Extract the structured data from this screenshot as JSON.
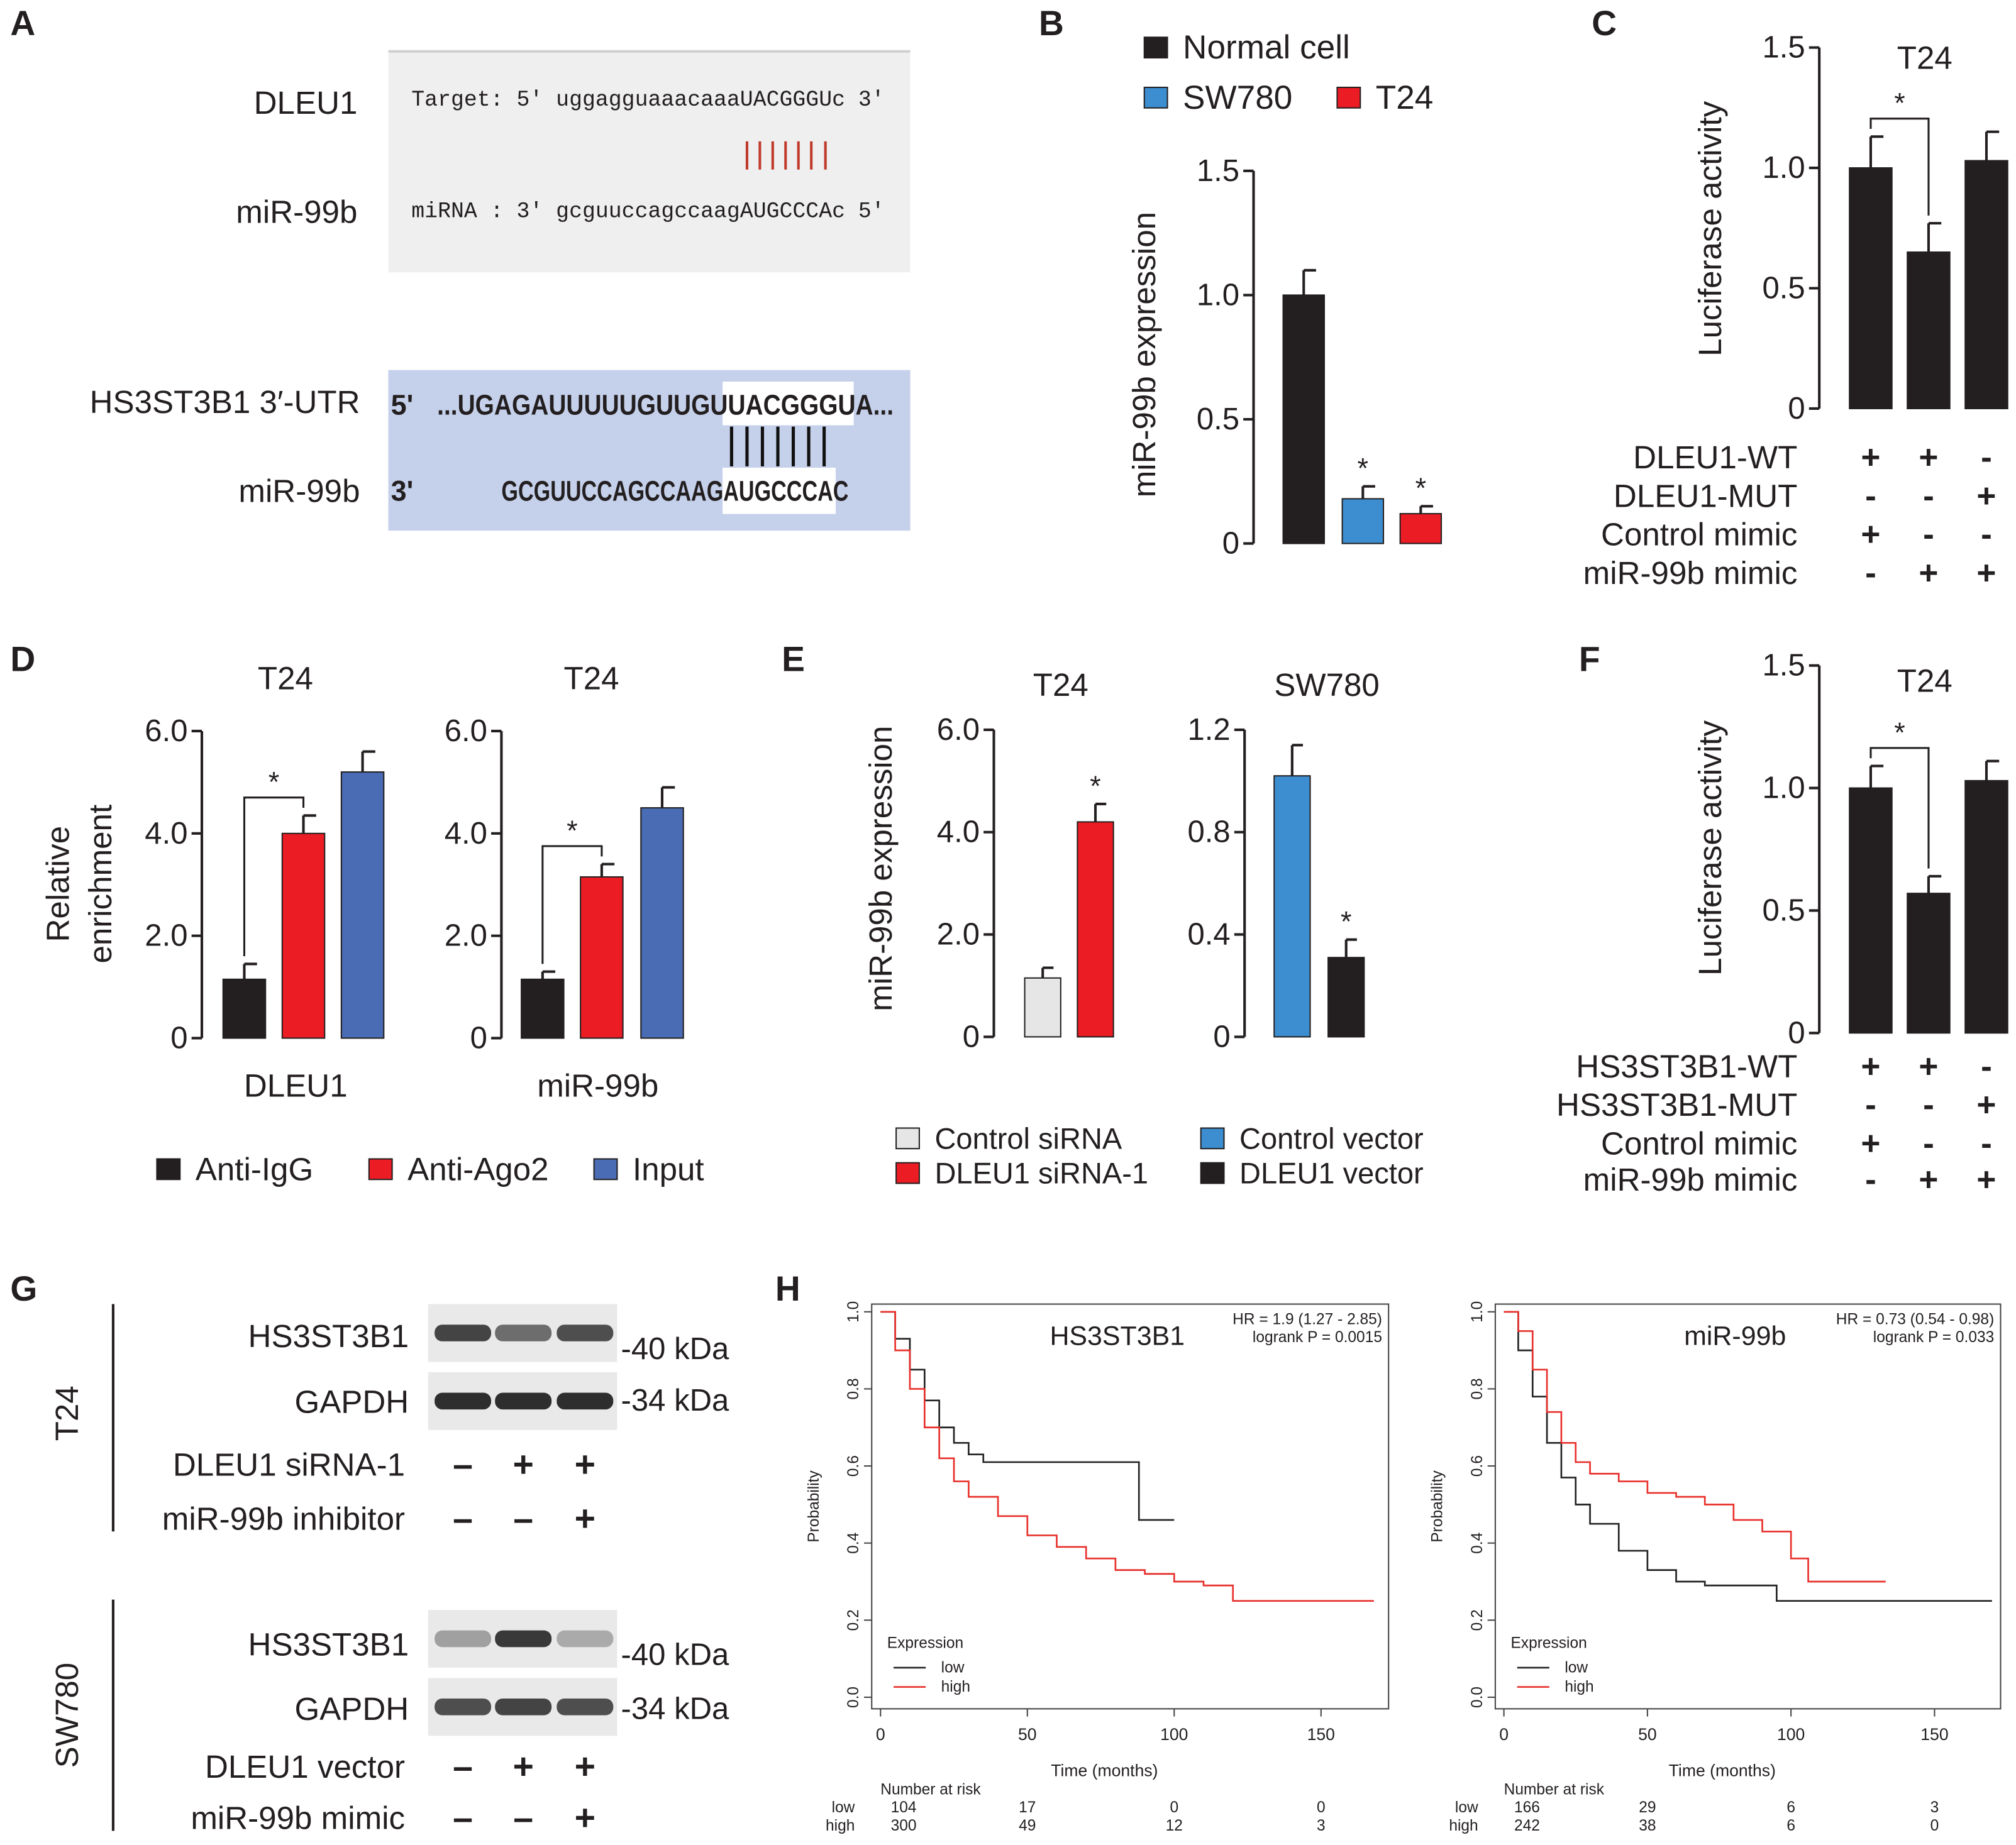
{
  "panel_labels": [
    "A",
    "B",
    "C",
    "D",
    "E",
    "F",
    "G",
    "H"
  ],
  "panel_a": {
    "pairs": [
      {
        "labels": [
          "DLEU1",
          "miR-99b"
        ],
        "lines": [
          "Target: 5' uggagguaaacaaaUACGGGUc 3'",
          "miRNA : 3' gcguuccagccaagAUGCCCAc 5'"
        ]
      },
      {
        "labels": [
          "HS3ST3B1 3′-UTR",
          "miR-99b"
        ],
        "ends": [
          "5'",
          "3'"
        ],
        "lines": [
          "...UGAGAUUUUUGUUGUUACGGGUA...",
          "GCGUUCCAGCCAAGAUGCCCAC"
        ]
      }
    ]
  },
  "chart_data": [
    {
      "type": "bar",
      "ylabel": "miR-99b expression",
      "ylim": [
        0,
        1.5
      ],
      "yticks": [
        0,
        0.5,
        {
          "value": 1,
          "label": "1.0"
        },
        1.5
      ],
      "series": [
        {
          "name": "Normal cell",
          "color": "#231f20",
          "values": [
            1.0
          ],
          "errors": [
            0.1
          ]
        },
        {
          "name": "SW780",
          "color": "#3d8ed0",
          "values": [
            0.18
          ],
          "errors": [
            0.05
          ]
        },
        {
          "name": "T24",
          "color": "#ec1c24",
          "values": [
            0.12
          ],
          "errors": [
            0.03
          ]
        }
      ],
      "annotations": [
        "*",
        "*"
      ]
    },
    {
      "type": "bar",
      "title": "T24",
      "ylabel": "Luciferase activity",
      "ylim": [
        0,
        1.5
      ],
      "yticks": [
        0,
        0.5,
        {
          "value": 1,
          "label": "1.0"
        },
        1.5
      ],
      "values": [
        1.0,
        0.65,
        1.03
      ],
      "errors": [
        0.13,
        0.12,
        0.12
      ],
      "color": "#231f20",
      "annotations": [
        "*"
      ],
      "conditions": [
        {
          "label": "DLEU1-WT",
          "signs": [
            "+",
            "+",
            "-"
          ]
        },
        {
          "label": "DLEU1-MUT",
          "signs": [
            "-",
            "-",
            "+"
          ]
        },
        {
          "label": "Control mimic",
          "signs": [
            "+",
            "-",
            "-"
          ]
        },
        {
          "label": "miR-99b mimic",
          "signs": [
            "-",
            "+",
            "+"
          ]
        }
      ]
    },
    {
      "type": "bar",
      "title": "T24",
      "xlabel": "DLEU1",
      "ylabel": [
        "Relative",
        "enrichment"
      ],
      "ylim": [
        0,
        6
      ],
      "yticks": [
        0,
        {
          "value": 2,
          "label": "2.0"
        },
        {
          "value": 4,
          "label": "4.0"
        },
        {
          "value": 6,
          "label": "6.0"
        }
      ],
      "series": [
        {
          "name": "Anti-IgG",
          "color": "#231f20",
          "values": [
            1.15
          ],
          "errors": [
            0.3
          ]
        },
        {
          "name": "Anti-Ago2",
          "color": "#ec1c24",
          "values": [
            4.0
          ],
          "errors": [
            0.35
          ]
        },
        {
          "name": "Input",
          "color": "#4a6cb4",
          "values": [
            5.2
          ],
          "errors": [
            0.4
          ]
        }
      ],
      "annotations": [
        "*"
      ]
    },
    {
      "type": "bar",
      "title": "T24",
      "xlabel": "miR-99b",
      "ylim": [
        0,
        6
      ],
      "yticks": [
        0,
        {
          "value": 2,
          "label": "2.0"
        },
        {
          "value": 4,
          "label": "4.0"
        },
        {
          "value": 6,
          "label": "6.0"
        }
      ],
      "series": [
        {
          "color": "#231f20",
          "values": [
            1.15
          ],
          "errors": [
            0.15
          ]
        },
        {
          "color": "#ec1c24",
          "values": [
            3.15
          ],
          "errors": [
            0.25
          ]
        },
        {
          "color": "#4a6cb4",
          "values": [
            4.5
          ],
          "errors": [
            0.4
          ]
        }
      ],
      "annotations": [
        "*"
      ]
    },
    {
      "type": "bar",
      "title": "T24",
      "ylabel": "miR-99b expression",
      "ylim": [
        0,
        6
      ],
      "yticks": [
        0,
        {
          "value": 2,
          "label": "2.0"
        },
        {
          "value": 4,
          "label": "4.0"
        },
        {
          "value": 6,
          "label": "6.0"
        }
      ],
      "series": [
        {
          "name": "Control siRNA",
          "color": "#e6e6e6",
          "values": [
            1.15
          ],
          "errors": [
            0.2
          ]
        },
        {
          "name": "DLEU1 siRNA-1",
          "color": "#ec1c24",
          "values": [
            4.2
          ],
          "errors": [
            0.35
          ]
        }
      ],
      "annotations": [
        "*"
      ]
    },
    {
      "type": "bar",
      "title": "SW780",
      "ylim": [
        0,
        1.2
      ],
      "yticks": [
        0,
        0.4,
        0.8,
        1.2
      ],
      "series": [
        {
          "name": "Control vector",
          "color": "#3d8ed0",
          "values": [
            1.02
          ],
          "errors": [
            0.12
          ]
        },
        {
          "name": "DLEU1 vector",
          "color": "#231f20",
          "values": [
            0.31
          ],
          "errors": [
            0.07
          ]
        }
      ],
      "annotations": [
        "*"
      ]
    },
    {
      "type": "bar",
      "title": "T24",
      "ylabel": "Luciferase activity",
      "ylim": [
        0,
        1.5
      ],
      "yticks": [
        0,
        0.5,
        {
          "value": 1,
          "label": "1.0"
        },
        1.5
      ],
      "values": [
        1.0,
        0.57,
        1.03
      ],
      "errors": [
        0.09,
        0.07,
        0.08
      ],
      "color": "#231f20",
      "annotations": [
        "*"
      ],
      "conditions": [
        {
          "label": "HS3ST3B1-WT",
          "signs": [
            "+",
            "+",
            "-"
          ]
        },
        {
          "label": "HS3ST3B1-MUT",
          "signs": [
            "-",
            "-",
            "+"
          ]
        },
        {
          "label": "Control mimic",
          "signs": [
            "+",
            "-",
            "-"
          ]
        },
        {
          "label": "miR-99b mimic",
          "signs": [
            "-",
            "+",
            "+"
          ]
        }
      ]
    },
    {
      "type": "line",
      "title": "HS3ST3B1",
      "hr": "HR = 1.9 (1.27 - 2.85)",
      "logrank": "logrank P = 0.0015",
      "xlabel": "Time (months)",
      "ylabel": "Probability",
      "legend_title": "Expression",
      "xlim": [
        -3,
        173
      ],
      "ylim": [
        -0.03,
        1.02
      ],
      "xticks": [
        0,
        50,
        100,
        150
      ],
      "yticks": [
        {
          "value": 0,
          "label": "0.0"
        },
        0.2,
        0.4,
        0.6,
        0.8,
        {
          "value": 1,
          "label": "1.0"
        }
      ],
      "series": [
        {
          "name": "low",
          "color": "#222222",
          "x": [
            0,
            5,
            10,
            15,
            20,
            25,
            30,
            35,
            50,
            60,
            70,
            80,
            88,
            100
          ],
          "values": [
            1,
            0.93,
            0.85,
            0.77,
            0.7,
            0.66,
            0.63,
            0.61,
            0.61,
            0.61,
            0.61,
            0.61,
            0.46,
            0.46
          ]
        },
        {
          "name": "high",
          "color": "#e8302c",
          "x": [
            0,
            5,
            10,
            15,
            20,
            25,
            30,
            40,
            50,
            60,
            70,
            80,
            90,
            100,
            110,
            120,
            130,
            150,
            168
          ],
          "values": [
            1,
            0.9,
            0.8,
            0.7,
            0.62,
            0.56,
            0.52,
            0.47,
            0.42,
            0.39,
            0.36,
            0.33,
            0.32,
            0.3,
            0.29,
            0.25,
            0.25,
            0.25,
            0.25
          ]
        }
      ],
      "risk": {
        "title": "Number at risk",
        "rows": [
          {
            "name": "low",
            "counts": [
              104,
              17,
              0,
              0
            ]
          },
          {
            "name": "high",
            "counts": [
              300,
              49,
              12,
              3
            ]
          }
        ]
      }
    },
    {
      "type": "line",
      "title": "miR-99b",
      "hr": "HR = 0.73 (0.54 - 0.98)",
      "logrank": "logrank P = 0.033",
      "xlabel": "Time (months)",
      "ylabel": "Probability",
      "legend_title": "Expression",
      "xlim": [
        -3,
        173
      ],
      "ylim": [
        -0.03,
        1.02
      ],
      "xticks": [
        0,
        50,
        100,
        150
      ],
      "yticks": [
        {
          "value": 0,
          "label": "0.0"
        },
        0.2,
        0.4,
        0.6,
        0.8,
        {
          "value": 1,
          "label": "1.0"
        }
      ],
      "series": [
        {
          "name": "low",
          "color": "#222222",
          "x": [
            0,
            5,
            10,
            15,
            20,
            25,
            30,
            40,
            50,
            60,
            70,
            80,
            95,
            110,
            170
          ],
          "values": [
            1,
            0.9,
            0.78,
            0.66,
            0.57,
            0.5,
            0.45,
            0.38,
            0.33,
            0.3,
            0.29,
            0.29,
            0.25,
            0.25,
            0.25
          ]
        },
        {
          "name": "high",
          "color": "#e8302c",
          "x": [
            0,
            5,
            10,
            15,
            20,
            25,
            30,
            40,
            50,
            60,
            70,
            80,
            90,
            100,
            106,
            120,
            133
          ],
          "values": [
            1,
            0.95,
            0.85,
            0.74,
            0.66,
            0.61,
            0.58,
            0.56,
            0.53,
            0.52,
            0.5,
            0.46,
            0.43,
            0.36,
            0.3,
            0.3,
            0.3
          ]
        }
      ],
      "risk": {
        "title": "Number at risk",
        "rows": [
          {
            "name": "low",
            "counts": [
              166,
              29,
              6,
              3
            ]
          },
          {
            "name": "high",
            "counts": [
              242,
              38,
              6,
              0
            ]
          }
        ]
      }
    }
  ],
  "panel_g": {
    "blocks": [
      {
        "cell": "T24",
        "proteins": [
          {
            "name": "HS3ST3B1",
            "size": "-40 kDa"
          },
          {
            "name": "GAPDH",
            "size": "-34 kDa"
          }
        ],
        "conditions": [
          {
            "label": "DLEU1 siRNA-1",
            "signs": [
              "–",
              "+",
              "+"
            ]
          },
          {
            "label": "miR-99b inhibitor",
            "signs": [
              "–",
              "–",
              "+"
            ]
          }
        ]
      },
      {
        "cell": "SW780",
        "proteins": [
          {
            "name": "HS3ST3B1",
            "size": "-40 kDa"
          },
          {
            "name": "GAPDH",
            "size": "-34 kDa"
          }
        ],
        "conditions": [
          {
            "label": "DLEU1 vector",
            "signs": [
              "–",
              "+",
              "+"
            ]
          },
          {
            "label": "miR-99b mimic",
            "signs": [
              "–",
              "–",
              "+"
            ]
          }
        ]
      }
    ]
  }
}
